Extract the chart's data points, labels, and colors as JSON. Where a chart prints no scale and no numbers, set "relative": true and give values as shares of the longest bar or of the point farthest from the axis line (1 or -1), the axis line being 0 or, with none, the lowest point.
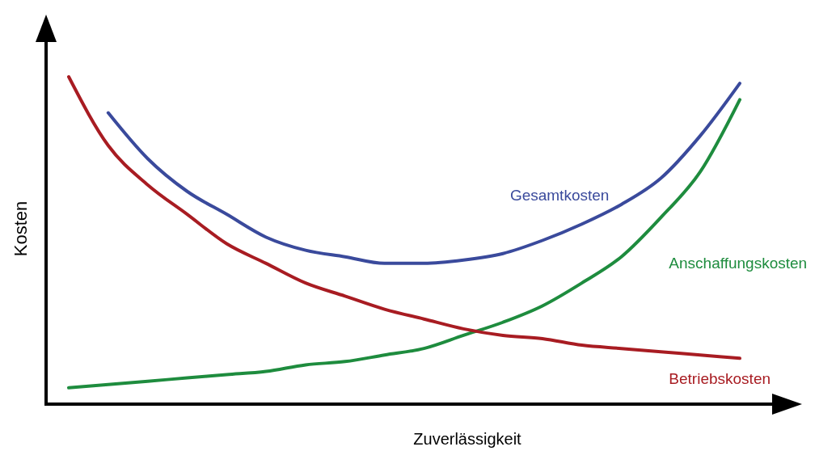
{
  "chart_data": {
    "type": "line",
    "relative": true,
    "xlabel": "Zuverlässigkeit",
    "ylabel": "Kosten",
    "grid": false,
    "marker": "none",
    "line_style": "solid",
    "categories": [
      null,
      null,
      null,
      null,
      null,
      null,
      null,
      null,
      null,
      null,
      null,
      null,
      null,
      null,
      null,
      null,
      null,
      null
    ],
    "series": [
      {
        "name": "Gesamtkosten",
        "color": "#3a4a9c",
        "values": [
          null,
          0.89,
          0.75,
          0.65,
          0.58,
          0.51,
          0.47,
          0.45,
          0.43,
          0.43,
          0.44,
          0.46,
          0.5,
          0.55,
          0.61,
          0.69,
          0.82,
          0.98
        ]
      },
      {
        "name": "Anschaffungskosten",
        "color": "#1e8c3e",
        "values": [
          0.05,
          0.06,
          0.07,
          0.08,
          0.09,
          0.1,
          0.12,
          0.13,
          0.15,
          0.17,
          0.21,
          0.25,
          0.3,
          0.37,
          0.45,
          0.57,
          0.71,
          0.93
        ]
      },
      {
        "name": "Betriebskosten",
        "color": "#a81c22",
        "values": [
          1,
          0.79,
          0.67,
          0.58,
          0.49,
          0.43,
          0.37,
          0.33,
          0.29,
          0.26,
          0.23,
          0.21,
          0.2,
          0.18,
          0.17,
          0.16,
          0.15,
          0.14
        ]
      }
    ]
  }
}
